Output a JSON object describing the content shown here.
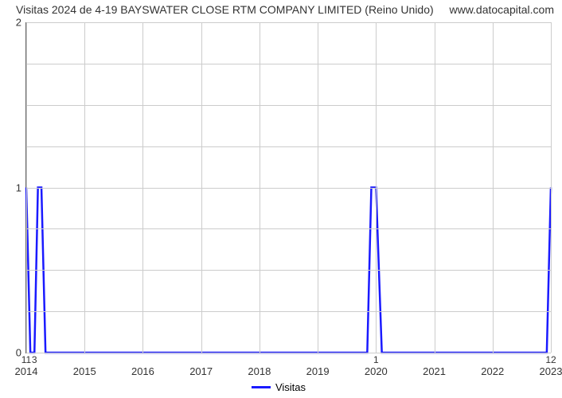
{
  "title": "Visitas 2024 de 4-19 BAYSWATER CLOSE RTM COMPANY LIMITED (Reino Unido)",
  "watermark": "www.datocapital.com",
  "chart": {
    "type": "line",
    "series_name": "Visitas",
    "line_color": "#1a1aff",
    "line_width": 2.5,
    "background_color": "#ffffff",
    "grid_color": "#cccccc",
    "axis_color": "#666666",
    "text_color": "#333333",
    "title_fontsize": 14,
    "label_fontsize": 13,
    "x_years": [
      2014,
      2015,
      2016,
      2017,
      2018,
      2019,
      2020,
      2021,
      2022,
      2023
    ],
    "x_min": 2014,
    "x_max": 2023,
    "ylim": [
      0,
      2
    ],
    "yticks": [
      0,
      1,
      2
    ],
    "y_minor_divisions": 4,
    "data": [
      {
        "x": 2014.0,
        "y": 1.0,
        "label": "11"
      },
      {
        "x": 2014.07,
        "y": 0.0,
        "label": ""
      },
      {
        "x": 2014.14,
        "y": 0.0,
        "label": "3"
      },
      {
        "x": 2014.2,
        "y": 1.0,
        "label": ""
      },
      {
        "x": 2014.26,
        "y": 1.0,
        "label": ""
      },
      {
        "x": 2014.33,
        "y": 0.0,
        "label": ""
      },
      {
        "x": 2019.85,
        "y": 0.0,
        "label": ""
      },
      {
        "x": 2019.92,
        "y": 1.0,
        "label": ""
      },
      {
        "x": 2020.0,
        "y": 1.0,
        "label": "1"
      },
      {
        "x": 2020.1,
        "y": 0.0,
        "label": ""
      },
      {
        "x": 2022.93,
        "y": 0.0,
        "label": ""
      },
      {
        "x": 2023.0,
        "y": 1.0,
        "label": "12"
      }
    ]
  },
  "legend": {
    "label": "Visitas"
  }
}
